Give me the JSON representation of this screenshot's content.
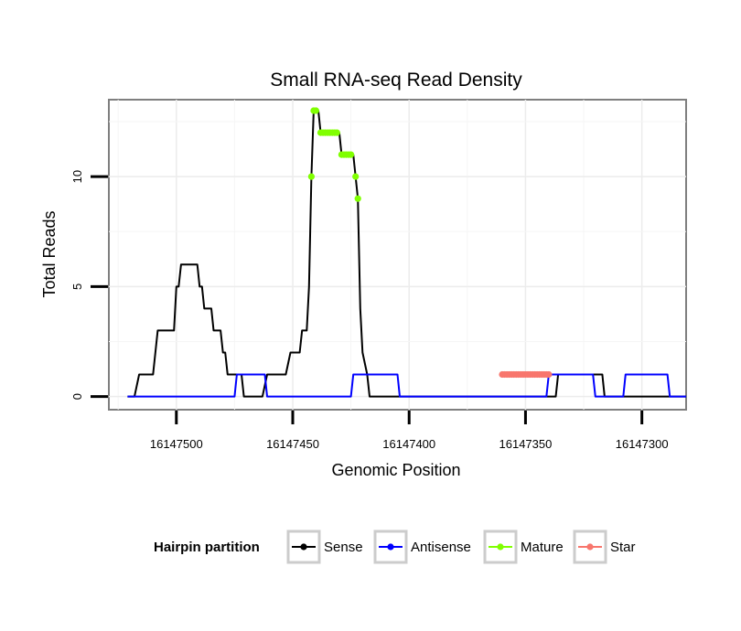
{
  "chart_data": {
    "type": "line",
    "title": "Small RNA-seq Read Density",
    "xlabel": "Genomic Position",
    "ylabel": "Total Reads",
    "x_reversed": true,
    "xlim": [
      16147281,
      16147529
    ],
    "ylim": [
      -0.6,
      13.5
    ],
    "xticks": [
      16147500,
      16147450,
      16147400,
      16147350,
      16147300
    ],
    "xtick_labels": [
      "16147500",
      "16147450",
      "16147400",
      "16147350",
      "16147300"
    ],
    "yticks": [
      0,
      5,
      10
    ],
    "ytick_labels": [
      "0",
      "5",
      "10"
    ],
    "grid": true,
    "legend": {
      "title": "Hairpin partition",
      "position": "bottom",
      "entries": [
        {
          "name": "Sense",
          "color": "#000000"
        },
        {
          "name": "Antisense",
          "color": "#0000ff"
        },
        {
          "name": "Mature",
          "color": "#80ff00"
        },
        {
          "name": "Star",
          "color": "#f8766d"
        }
      ]
    },
    "series": [
      {
        "name": "Sense",
        "color": "#000000",
        "kind": "line",
        "points": [
          [
            16147521,
            0
          ],
          [
            16147518,
            0
          ],
          [
            16147516,
            1
          ],
          [
            16147510,
            1
          ],
          [
            16147508,
            3
          ],
          [
            16147501,
            3
          ],
          [
            16147500,
            5
          ],
          [
            16147499,
            5
          ],
          [
            16147498,
            6
          ],
          [
            16147491,
            6
          ],
          [
            16147490,
            5
          ],
          [
            16147489,
            5
          ],
          [
            16147488,
            4
          ],
          [
            16147485,
            4
          ],
          [
            16147484,
            3
          ],
          [
            16147481,
            3
          ],
          [
            16147480,
            2
          ],
          [
            16147479,
            2
          ],
          [
            16147478,
            1
          ],
          [
            16147472,
            1
          ],
          [
            16147471,
            0
          ],
          [
            16147463,
            0
          ],
          [
            16147461,
            1
          ],
          [
            16147453,
            1
          ],
          [
            16147451,
            2
          ],
          [
            16147447,
            2
          ],
          [
            16147446,
            3
          ],
          [
            16147444,
            3
          ],
          [
            16147443,
            5
          ],
          [
            16147442,
            10
          ],
          [
            16147441,
            13
          ],
          [
            16147439,
            13
          ],
          [
            16147438,
            12
          ],
          [
            16147430,
            12
          ],
          [
            16147429,
            11
          ],
          [
            16147424,
            11
          ],
          [
            16147423,
            10
          ],
          [
            16147422,
            9
          ],
          [
            16147421,
            4
          ],
          [
            16147420,
            2
          ],
          [
            16147418,
            1
          ],
          [
            16147417,
            0
          ],
          [
            16147337,
            0
          ],
          [
            16147336,
            1
          ],
          [
            16147317,
            1
          ],
          [
            16147316,
            0
          ],
          [
            16147281,
            0
          ]
        ]
      },
      {
        "name": "Antisense",
        "color": "#0000ff",
        "kind": "line",
        "points": [
          [
            16147521,
            0
          ],
          [
            16147475,
            0
          ],
          [
            16147474,
            1
          ],
          [
            16147462,
            1
          ],
          [
            16147461,
            0
          ],
          [
            16147425,
            0
          ],
          [
            16147424,
            1
          ],
          [
            16147405,
            1
          ],
          [
            16147404,
            0
          ],
          [
            16147341,
            0
          ],
          [
            16147340,
            1
          ],
          [
            16147321,
            1
          ],
          [
            16147320,
            0
          ],
          [
            16147308,
            0
          ],
          [
            16147307,
            1
          ],
          [
            16147289,
            1
          ],
          [
            16147288,
            0
          ],
          [
            16147281,
            0
          ]
        ]
      },
      {
        "name": "Mature",
        "color": "#80ff00",
        "kind": "points",
        "points": [
          [
            16147442,
            10
          ],
          [
            16147441,
            13
          ],
          [
            16147440,
            13
          ],
          [
            16147438,
            12
          ],
          [
            16147437,
            12
          ],
          [
            16147436,
            12
          ],
          [
            16147435,
            12
          ],
          [
            16147434,
            12
          ],
          [
            16147433,
            12
          ],
          [
            16147432,
            12
          ],
          [
            16147431,
            12
          ],
          [
            16147429,
            11
          ],
          [
            16147428,
            11
          ],
          [
            16147427,
            11
          ],
          [
            16147426,
            11
          ],
          [
            16147425,
            11
          ],
          [
            16147423,
            10
          ],
          [
            16147422,
            9
          ]
        ]
      },
      {
        "name": "Star",
        "color": "#f8766d",
        "kind": "points",
        "points": [
          [
            16147360,
            1
          ],
          [
            16147359,
            1
          ],
          [
            16147358,
            1
          ],
          [
            16147357,
            1
          ],
          [
            16147356,
            1
          ],
          [
            16147355,
            1
          ],
          [
            16147354,
            1
          ],
          [
            16147353,
            1
          ],
          [
            16147352,
            1
          ],
          [
            16147351,
            1
          ],
          [
            16147350,
            1
          ],
          [
            16147349,
            1
          ],
          [
            16147348,
            1
          ],
          [
            16147347,
            1
          ],
          [
            16147346,
            1
          ],
          [
            16147345,
            1
          ],
          [
            16147344,
            1
          ],
          [
            16147343,
            1
          ],
          [
            16147342,
            1
          ],
          [
            16147341,
            1
          ],
          [
            16147340,
            1
          ]
        ]
      }
    ]
  }
}
